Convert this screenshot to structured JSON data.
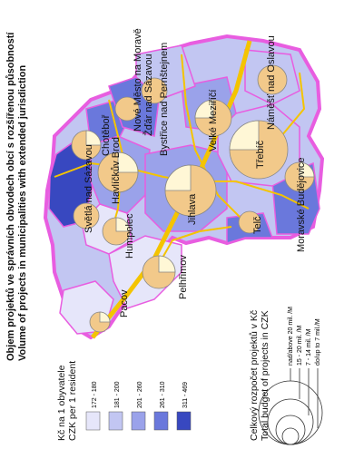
{
  "title": {
    "line1": "Objem projektů ve správních obvodech obcí s rozšířenou působností",
    "line2": "Volume of projects in municipalities with extended jurisdiction"
  },
  "legend_per_capita": {
    "line1": "Kč na 1 obyvatele",
    "line2": "CZK per 1 resident",
    "bins": [
      {
        "label": "172 - 180",
        "color": "#e6e6fa"
      },
      {
        "label": "181 - 200",
        "color": "#c2c6f2"
      },
      {
        "label": "201 - 260",
        "color": "#9aa2ea"
      },
      {
        "label": "261 - 310",
        "color": "#6a78dc"
      },
      {
        "label": "311 - 469",
        "color": "#3848c0"
      }
    ]
  },
  "legend_budget": {
    "line1": "Celkový rozpočet projektů v Kč",
    "line2": "Total budget of projects in CZK",
    "sizes": [
      "nad/above 20 mil. /M",
      "15 - 20 mil. /M",
      "7 - 14 mil. /M",
      "do/up to 7 mil./M"
    ]
  },
  "colors": {
    "border_pink": "#e85de0",
    "road_yellow": "#f4c400",
    "circle_fill": "#f2c98a",
    "circle_slice": "#fff7d6"
  },
  "municipalities": [
    {
      "name": "Chotěboř",
      "value_class": 3,
      "budget_class": 2
    },
    {
      "name": "Havlíčkův Brod",
      "value_class": 2,
      "budget_class": 3
    },
    {
      "name": "Světlá nad Sázavou",
      "value_class": 4,
      "budget_class": 2
    },
    {
      "name": "Humpolec",
      "value_class": 1,
      "budget_class": 2
    },
    {
      "name": "Pelhřimov",
      "value_class": 1,
      "budget_class": 3
    },
    {
      "name": "Pacov",
      "value_class": 1,
      "budget_class": 1
    },
    {
      "name": "Jihlava",
      "value_class": 2,
      "budget_class": 4
    },
    {
      "name": "Telč",
      "value_class": 3,
      "budget_class": 1
    },
    {
      "name": "Moravské Budějovice",
      "value_class": 3,
      "budget_class": 2
    },
    {
      "name": "Třebíč",
      "value_class": 2,
      "budget_class": 4
    },
    {
      "name": "Velké Meziříčí",
      "value_class": 2,
      "budget_class": 3
    },
    {
      "name": "Náměšť nad Oslavou",
      "value_class": 2,
      "budget_class": 2
    },
    {
      "name": "Bystřice nad Pernštejnem",
      "value_class": 2,
      "budget_class": 2
    },
    {
      "name": "Žďár nad Sázavou",
      "value_class": 3,
      "budget_class": 3
    },
    {
      "name": "Nové Město na Moravě",
      "value_class": 4,
      "budget_class": 2
    }
  ]
}
